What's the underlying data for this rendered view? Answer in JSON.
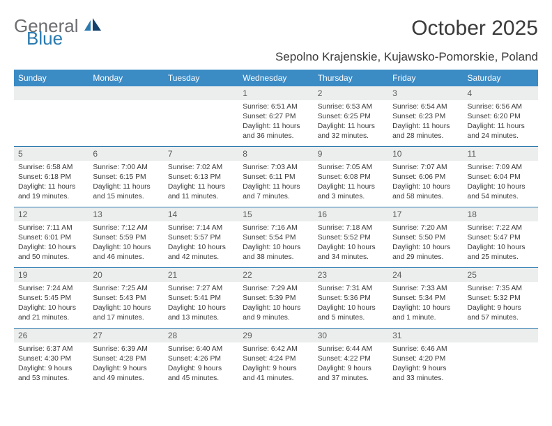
{
  "brand": {
    "general": "General",
    "blue": "Blue"
  },
  "title": "October 2025",
  "location": "Sepolno Krajenskie, Kujawsko-Pomorskie, Poland",
  "colors": {
    "header_bg": "#3b8bc5",
    "header_text": "#ffffff",
    "daynum_bg": "#eceded",
    "rule": "#2a7ab0",
    "body_text": "#3a3a3a",
    "logo_gray": "#6d6e71",
    "logo_blue": "#2a7ab0"
  },
  "days_of_week": [
    "Sunday",
    "Monday",
    "Tuesday",
    "Wednesday",
    "Thursday",
    "Friday",
    "Saturday"
  ],
  "weeks": [
    [
      {
        "n": "",
        "sunrise": "",
        "sunset": "",
        "daylight": ""
      },
      {
        "n": "",
        "sunrise": "",
        "sunset": "",
        "daylight": ""
      },
      {
        "n": "",
        "sunrise": "",
        "sunset": "",
        "daylight": ""
      },
      {
        "n": "1",
        "sunrise": "Sunrise: 6:51 AM",
        "sunset": "Sunset: 6:27 PM",
        "daylight": "Daylight: 11 hours and 36 minutes."
      },
      {
        "n": "2",
        "sunrise": "Sunrise: 6:53 AM",
        "sunset": "Sunset: 6:25 PM",
        "daylight": "Daylight: 11 hours and 32 minutes."
      },
      {
        "n": "3",
        "sunrise": "Sunrise: 6:54 AM",
        "sunset": "Sunset: 6:23 PM",
        "daylight": "Daylight: 11 hours and 28 minutes."
      },
      {
        "n": "4",
        "sunrise": "Sunrise: 6:56 AM",
        "sunset": "Sunset: 6:20 PM",
        "daylight": "Daylight: 11 hours and 24 minutes."
      }
    ],
    [
      {
        "n": "5",
        "sunrise": "Sunrise: 6:58 AM",
        "sunset": "Sunset: 6:18 PM",
        "daylight": "Daylight: 11 hours and 19 minutes."
      },
      {
        "n": "6",
        "sunrise": "Sunrise: 7:00 AM",
        "sunset": "Sunset: 6:15 PM",
        "daylight": "Daylight: 11 hours and 15 minutes."
      },
      {
        "n": "7",
        "sunrise": "Sunrise: 7:02 AM",
        "sunset": "Sunset: 6:13 PM",
        "daylight": "Daylight: 11 hours and 11 minutes."
      },
      {
        "n": "8",
        "sunrise": "Sunrise: 7:03 AM",
        "sunset": "Sunset: 6:11 PM",
        "daylight": "Daylight: 11 hours and 7 minutes."
      },
      {
        "n": "9",
        "sunrise": "Sunrise: 7:05 AM",
        "sunset": "Sunset: 6:08 PM",
        "daylight": "Daylight: 11 hours and 3 minutes."
      },
      {
        "n": "10",
        "sunrise": "Sunrise: 7:07 AM",
        "sunset": "Sunset: 6:06 PM",
        "daylight": "Daylight: 10 hours and 58 minutes."
      },
      {
        "n": "11",
        "sunrise": "Sunrise: 7:09 AM",
        "sunset": "Sunset: 6:04 PM",
        "daylight": "Daylight: 10 hours and 54 minutes."
      }
    ],
    [
      {
        "n": "12",
        "sunrise": "Sunrise: 7:11 AM",
        "sunset": "Sunset: 6:01 PM",
        "daylight": "Daylight: 10 hours and 50 minutes."
      },
      {
        "n": "13",
        "sunrise": "Sunrise: 7:12 AM",
        "sunset": "Sunset: 5:59 PM",
        "daylight": "Daylight: 10 hours and 46 minutes."
      },
      {
        "n": "14",
        "sunrise": "Sunrise: 7:14 AM",
        "sunset": "Sunset: 5:57 PM",
        "daylight": "Daylight: 10 hours and 42 minutes."
      },
      {
        "n": "15",
        "sunrise": "Sunrise: 7:16 AM",
        "sunset": "Sunset: 5:54 PM",
        "daylight": "Daylight: 10 hours and 38 minutes."
      },
      {
        "n": "16",
        "sunrise": "Sunrise: 7:18 AM",
        "sunset": "Sunset: 5:52 PM",
        "daylight": "Daylight: 10 hours and 34 minutes."
      },
      {
        "n": "17",
        "sunrise": "Sunrise: 7:20 AM",
        "sunset": "Sunset: 5:50 PM",
        "daylight": "Daylight: 10 hours and 29 minutes."
      },
      {
        "n": "18",
        "sunrise": "Sunrise: 7:22 AM",
        "sunset": "Sunset: 5:47 PM",
        "daylight": "Daylight: 10 hours and 25 minutes."
      }
    ],
    [
      {
        "n": "19",
        "sunrise": "Sunrise: 7:24 AM",
        "sunset": "Sunset: 5:45 PM",
        "daylight": "Daylight: 10 hours and 21 minutes."
      },
      {
        "n": "20",
        "sunrise": "Sunrise: 7:25 AM",
        "sunset": "Sunset: 5:43 PM",
        "daylight": "Daylight: 10 hours and 17 minutes."
      },
      {
        "n": "21",
        "sunrise": "Sunrise: 7:27 AM",
        "sunset": "Sunset: 5:41 PM",
        "daylight": "Daylight: 10 hours and 13 minutes."
      },
      {
        "n": "22",
        "sunrise": "Sunrise: 7:29 AM",
        "sunset": "Sunset: 5:39 PM",
        "daylight": "Daylight: 10 hours and 9 minutes."
      },
      {
        "n": "23",
        "sunrise": "Sunrise: 7:31 AM",
        "sunset": "Sunset: 5:36 PM",
        "daylight": "Daylight: 10 hours and 5 minutes."
      },
      {
        "n": "24",
        "sunrise": "Sunrise: 7:33 AM",
        "sunset": "Sunset: 5:34 PM",
        "daylight": "Daylight: 10 hours and 1 minute."
      },
      {
        "n": "25",
        "sunrise": "Sunrise: 7:35 AM",
        "sunset": "Sunset: 5:32 PM",
        "daylight": "Daylight: 9 hours and 57 minutes."
      }
    ],
    [
      {
        "n": "26",
        "sunrise": "Sunrise: 6:37 AM",
        "sunset": "Sunset: 4:30 PM",
        "daylight": "Daylight: 9 hours and 53 minutes."
      },
      {
        "n": "27",
        "sunrise": "Sunrise: 6:39 AM",
        "sunset": "Sunset: 4:28 PM",
        "daylight": "Daylight: 9 hours and 49 minutes."
      },
      {
        "n": "28",
        "sunrise": "Sunrise: 6:40 AM",
        "sunset": "Sunset: 4:26 PM",
        "daylight": "Daylight: 9 hours and 45 minutes."
      },
      {
        "n": "29",
        "sunrise": "Sunrise: 6:42 AM",
        "sunset": "Sunset: 4:24 PM",
        "daylight": "Daylight: 9 hours and 41 minutes."
      },
      {
        "n": "30",
        "sunrise": "Sunrise: 6:44 AM",
        "sunset": "Sunset: 4:22 PM",
        "daylight": "Daylight: 9 hours and 37 minutes."
      },
      {
        "n": "31",
        "sunrise": "Sunrise: 6:46 AM",
        "sunset": "Sunset: 4:20 PM",
        "daylight": "Daylight: 9 hours and 33 minutes."
      },
      {
        "n": "",
        "sunrise": "",
        "sunset": "",
        "daylight": ""
      }
    ]
  ]
}
